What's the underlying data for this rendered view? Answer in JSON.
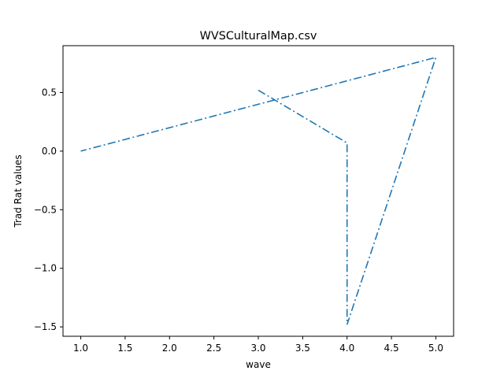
{
  "chart_data": {
    "type": "line",
    "title": "WVSCulturalMap.csv",
    "xlabel": "wave",
    "ylabel": "Trad Rat values",
    "xlim": [
      0.8,
      5.2
    ],
    "ylim": [
      -1.58,
      0.9
    ],
    "x_ticks": [
      1.0,
      1.5,
      2.0,
      2.5,
      3.0,
      3.5,
      4.0,
      4.5,
      5.0
    ],
    "x_tick_labels": [
      "1.0",
      "1.5",
      "2.0",
      "2.5",
      "3.0",
      "3.5",
      "4.0",
      "4.5",
      "5.0"
    ],
    "y_ticks": [
      0.5,
      0.0,
      -0.5,
      -1.0,
      -1.5
    ],
    "y_tick_labels": [
      "0.5",
      "0.0",
      "−0.5",
      "−1.0",
      "−1.5"
    ],
    "grid": false,
    "legend": null,
    "series": [
      {
        "color": "#1f77b4",
        "linestyle": "dashdot",
        "x": [
          3.0,
          4.0,
          4.0,
          5.0,
          1.0
        ],
        "y": [
          0.52,
          0.07,
          -1.48,
          0.8,
          0.0
        ]
      }
    ]
  }
}
